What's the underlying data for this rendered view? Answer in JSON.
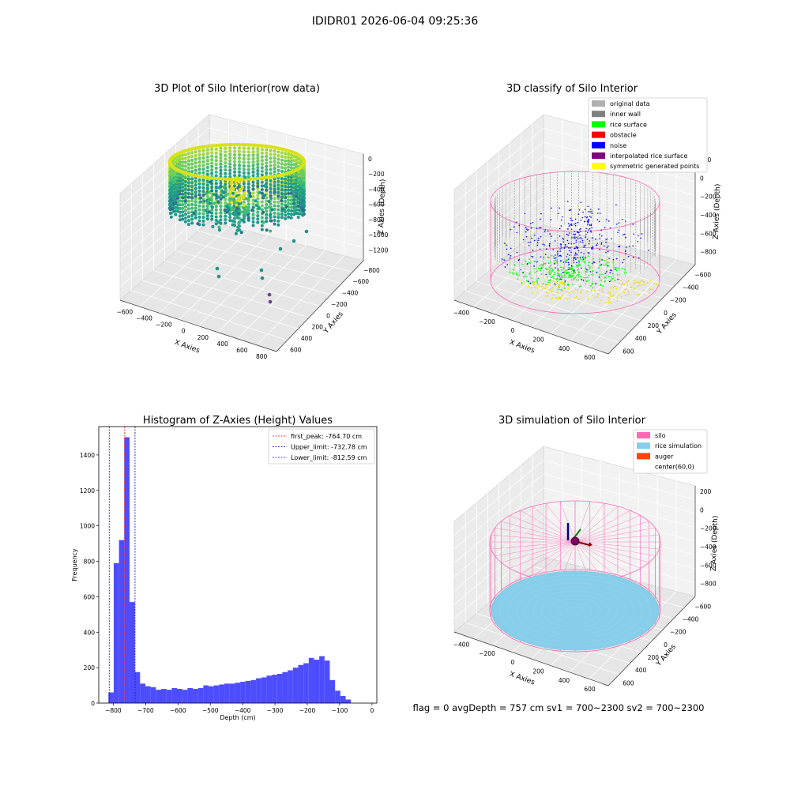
{
  "figure": {
    "suptitle": "IDIDR01 2026-06-04 09:25:36"
  },
  "colors": {
    "viridis_dark": "#2c728e",
    "viridis_mid": "#21a585",
    "viridis_light": "#d8e219",
    "hist_bar": "#4d4dff",
    "first_peak_line": "#ff0000",
    "limit_line": "#0000cc",
    "inner_wall": "#808080",
    "rice_surface": "#00ff00",
    "noise": "#0000ff",
    "silo": "#ff69b4",
    "rice_sim": "#87ceeb",
    "auger": "#ff4500"
  },
  "panels": {
    "raw": {
      "title": "3D Plot of Silo Interior(row data)",
      "xlabel": "X Axies",
      "ylabel": "Y Axies",
      "zlabel": "Z Axies (Depth)",
      "xticks": [
        "−600",
        "−400",
        "−200",
        "0",
        "200",
        "400",
        "600",
        "800"
      ],
      "yticks": [
        "−800",
        "−600",
        "−400",
        "−200",
        "0",
        "200",
        "400",
        "600"
      ],
      "zticks": [
        "0",
        "−200",
        "−400",
        "−600",
        "−800",
        "−1000",
        "−1200"
      ]
    },
    "classify": {
      "title": "3D classify of Silo Interior",
      "xlabel": "X Axies",
      "ylabel": "Y Axies",
      "zlabel": "Z Axies (Depth)",
      "xticks": [
        "−400",
        "−200",
        "0",
        "200",
        "400",
        "600"
      ],
      "yticks": [
        "−600",
        "−400",
        "−200",
        "0",
        "200",
        "400",
        "600"
      ],
      "zticks": [
        "200",
        "0",
        "−200",
        "−400",
        "−600",
        "−800"
      ],
      "legend": [
        {
          "label": "original data",
          "color": "#b0b0b0"
        },
        {
          "label": "inner wall",
          "color": "#808080"
        },
        {
          "label": "rice surface",
          "color": "#00ff00"
        },
        {
          "label": "obstacle",
          "color": "#ff0000"
        },
        {
          "label": "noise",
          "color": "#0000ff"
        },
        {
          "label": "interpolated rice surface",
          "color": "#800080"
        },
        {
          "label": "symmetric generated points",
          "color": "#ffff00"
        }
      ]
    },
    "simulation": {
      "title": "3D simulation of Silo Interior",
      "xlabel": "X Axies",
      "ylabel": "Y Axies",
      "zlabel": "Z Axies (Depth)",
      "xticks": [
        "−400",
        "−200",
        "0",
        "200",
        "400",
        "600"
      ],
      "yticks": [
        "−600",
        "−400",
        "−200",
        "0",
        "200",
        "400",
        "600"
      ],
      "zticks": [
        "200",
        "0",
        "−200",
        "−400",
        "−600",
        "−800"
      ],
      "legend": [
        {
          "label": "silo",
          "color": "#ff69b4"
        },
        {
          "label": "rice simulation",
          "color": "#87ceeb"
        },
        {
          "label": "auger",
          "color": "#ff4500"
        },
        {
          "label": "center(60,0)",
          "color": ""
        }
      ],
      "footer": "flag = 0     avgDepth = 757 cm  sv1 = 700~2300  sv2 = 700~2300"
    }
  },
  "chart_data": {
    "type": "bar",
    "title": "Histogram of Z-Axies (Height) Values",
    "xlabel": "Depth (cm)",
    "ylabel": "Frequency",
    "xlim": [
      -845,
      15
    ],
    "ylim": [
      0,
      1560
    ],
    "xticks": [
      -800,
      -700,
      -600,
      -500,
      -400,
      -300,
      -200,
      -100,
      0
    ],
    "yticks": [
      0,
      200,
      400,
      600,
      800,
      1000,
      1200,
      1400
    ],
    "bin_start": -815,
    "bin_width": 16.3,
    "values": [
      60,
      790,
      920,
      1500,
      570,
      175,
      110,
      95,
      90,
      75,
      80,
      75,
      85,
      80,
      75,
      85,
      80,
      85,
      100,
      95,
      100,
      105,
      110,
      110,
      115,
      120,
      125,
      130,
      140,
      145,
      155,
      160,
      165,
      175,
      185,
      200,
      215,
      225,
      255,
      245,
      265,
      240,
      130,
      70,
      40,
      20
    ],
    "vlines": [
      {
        "label": "first_peak: -764.70 cm",
        "x": -764.7,
        "color": "#ff0000"
      },
      {
        "label": "Upper_limit: -732.78 cm",
        "x": -732.78,
        "color": "#0000cc"
      },
      {
        "label": "Lower_limit: -812.59 cm",
        "x": -812.59,
        "color": "#0000cc"
      }
    ]
  }
}
